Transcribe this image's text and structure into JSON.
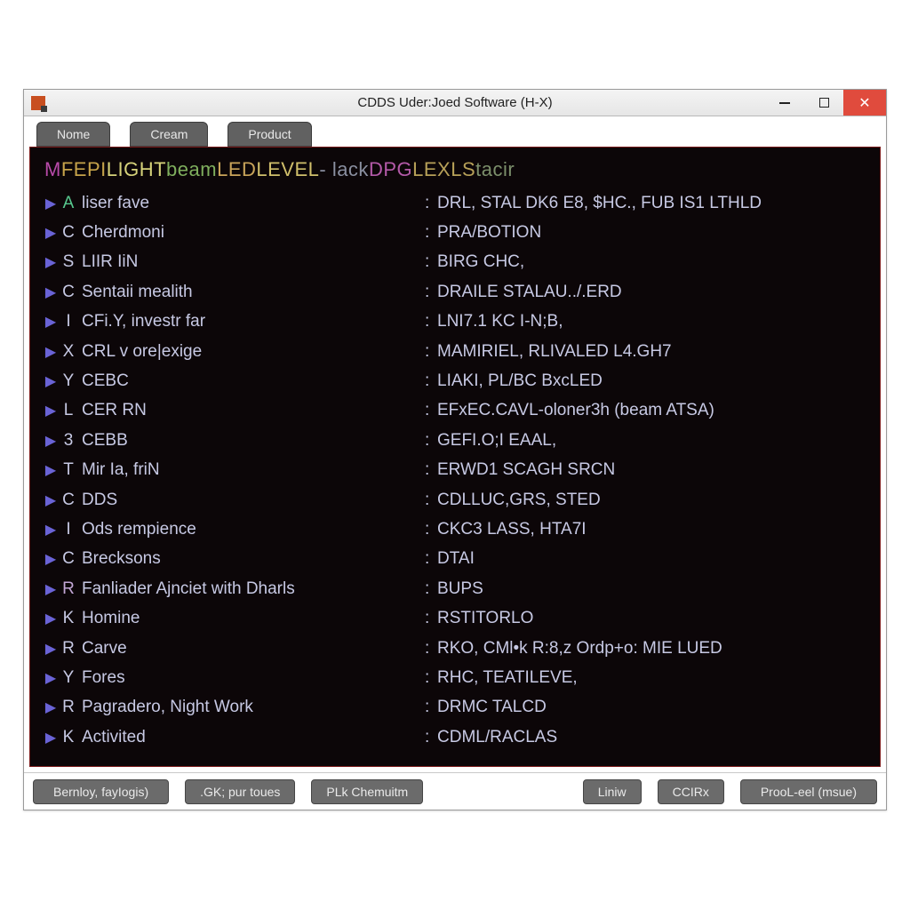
{
  "window": {
    "title": "CDDS Uder:Joed Software (H‑X)"
  },
  "tabs": [
    {
      "label": "Nome"
    },
    {
      "label": "Cream"
    },
    {
      "label": "Product"
    }
  ],
  "header": {
    "segments": [
      {
        "text": "M",
        "color": "#b84aa9"
      },
      {
        "text": " FEPI",
        "color": "#c6a34a"
      },
      {
        "text": " LIGHT",
        "color": "#d6d27a"
      },
      {
        "text": " beam",
        "color": "#7fae5d"
      },
      {
        "text": " LED",
        "color": "#c9a45a"
      },
      {
        "text": " LEVEL",
        "color": "#d0bf6b"
      },
      {
        "text": " - lack",
        "color": "#8a8fa0"
      },
      {
        "text": " DPG",
        "color": "#b45aa9"
      },
      {
        "text": " LEXLS",
        "color": "#b7a058"
      },
      {
        "text": " tacir",
        "color": "#7c8f6b"
      }
    ]
  },
  "rows": [
    {
      "code": "A",
      "codeColor": "#57c98f",
      "left": "liser fave",
      "right": "DRL, STAL DK6 E8, $HC., FUB IS1 LTHLD"
    },
    {
      "code": "C",
      "codeColor": "#c7c9e4",
      "left": "Cherdmoni",
      "right": "PRA/BOTION"
    },
    {
      "code": "S",
      "codeColor": "#c7c9e4",
      "left": "LIIR IiN",
      "right": "BIRG CHC,"
    },
    {
      "code": "C",
      "codeColor": "#c7c9e4",
      "left": "Sentaii mealith",
      "right": "DRAILE STALAU../.ERD"
    },
    {
      "code": "I",
      "codeColor": "#c7c9e4",
      "left": "CFi.Y, investr far",
      "right": "LNI7.1 KC I-N;B,"
    },
    {
      "code": "X",
      "codeColor": "#c7c9e4",
      "left": "CRL v ore|exige",
      "right": "MAMIRIEL, RLIVALED L4.GH7"
    },
    {
      "code": "Y",
      "codeColor": "#c7c9e4",
      "left": "CEBC",
      "right": "LIAKI, PL/BC BxcLED"
    },
    {
      "code": "L",
      "codeColor": "#c7c9e4",
      "left": "CER RN",
      "right": "EFxEC.CAVL-oloner3h (beam ATSA)"
    },
    {
      "code": "3",
      "codeColor": "#c7c9e4",
      "left": "CEBB",
      "right": "GEFI.O;I EAAL,"
    },
    {
      "code": "T",
      "codeColor": "#c7c9e4",
      "left": "Mir Ia, friN",
      "right": "ERWD1 SCAGH SRCN"
    },
    {
      "code": "C",
      "codeColor": "#c7c9e4",
      "left": "DDS",
      "right": "CDLLUC,GRS, STED"
    },
    {
      "code": "I",
      "codeColor": "#c7c9e4",
      "left": "Ods rempience",
      "right": "CKC3 LASS, HTA7I"
    },
    {
      "code": "C",
      "codeColor": "#c7c9e4",
      "left": "Brecksons",
      "right": "DTAI"
    },
    {
      "code": "R",
      "codeColor": "#c3a7d6",
      "left": "Fanliader Ajnciet with Dharls",
      "right": "BUPS"
    },
    {
      "code": "K",
      "codeColor": "#c7c9e4",
      "left": "Homine",
      "right": "RSTITORLO"
    },
    {
      "code": "R",
      "codeColor": "#c7c9e4",
      "left": "Carve",
      "right": "RKO, CMl•k R:8,z Ordp+o: MIE LUED"
    },
    {
      "code": "Y",
      "codeColor": "#c7c9e4",
      "left": "Fores",
      "right": "RHC, TEATILEVE,"
    },
    {
      "code": "R",
      "codeColor": "#c7c9e4",
      "left": "Pagradero, Night Work",
      "right": "DRMC TALCD"
    },
    {
      "code": "K",
      "codeColor": "#c7c9e4",
      "left": "Activited",
      "right": "CDML/RACLAS"
    }
  ],
  "bottomButtons": [
    {
      "label": "Bernloy, fayIogis)"
    },
    {
      "label": ".GK; pur toues"
    },
    {
      "label": "PLk Chemuitm"
    },
    {
      "label": "Liniw"
    },
    {
      "label": "CCIRx"
    },
    {
      "label": "ProoL-eel (msue)"
    }
  ],
  "colors": {
    "panel_bg": "#0c0608",
    "panel_border": "#7a1a1a",
    "row_text": "#c7c9e4",
    "arrow": "#6a63d6",
    "tab_bg": "#616161",
    "btn_bg": "#6b6b6b",
    "close_bg": "#e04b3d"
  }
}
